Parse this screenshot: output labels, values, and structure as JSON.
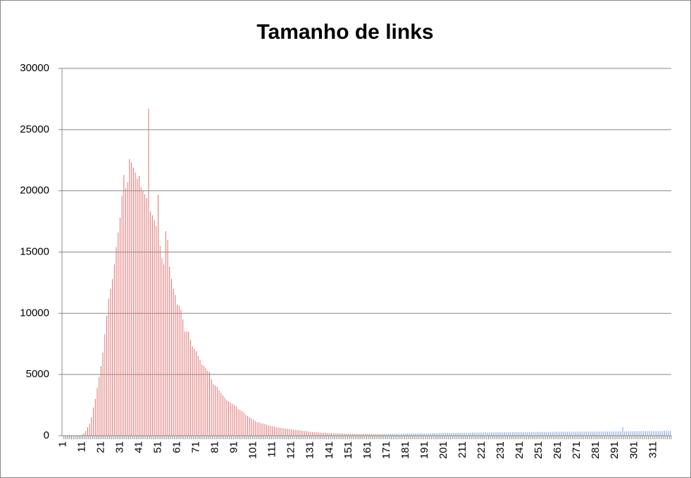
{
  "chart_data": {
    "type": "bar",
    "title": "Tamanho de links",
    "categories": [
      "1",
      null,
      null,
      null,
      null,
      null,
      null,
      null,
      null,
      null,
      "11",
      null,
      null,
      null,
      null,
      null,
      null,
      null,
      null,
      null,
      "21",
      null,
      null,
      null,
      null,
      null,
      null,
      null,
      null,
      null,
      "31",
      null,
      null,
      null,
      null,
      null,
      null,
      null,
      null,
      null,
      "41",
      null,
      null,
      null,
      null,
      null,
      null,
      null,
      null,
      null,
      "51",
      null,
      null,
      null,
      null,
      null,
      null,
      null,
      null,
      null,
      "61",
      null,
      null,
      null,
      null,
      null,
      null,
      null,
      null,
      null,
      "71",
      null,
      null,
      null,
      null,
      null,
      null,
      null,
      null,
      null,
      "81",
      null,
      null,
      null,
      null,
      null,
      null,
      null,
      null,
      null,
      "91",
      null,
      null,
      null,
      null,
      null,
      null,
      null,
      null,
      null,
      "101",
      null,
      null,
      null,
      null,
      null,
      null,
      null,
      null,
      null,
      "111",
      null,
      null,
      null,
      null,
      null,
      null,
      null,
      null,
      null,
      "121",
      null,
      null,
      null,
      null,
      null,
      null,
      null,
      null,
      null,
      "131",
      null,
      null,
      null,
      null,
      null,
      null,
      null,
      null,
      null,
      "141",
      null,
      null,
      null,
      null,
      null,
      null,
      null,
      null,
      null,
      "151",
      null,
      null,
      null,
      null,
      null,
      null,
      null,
      null,
      null,
      "161",
      null,
      null,
      null,
      null,
      null,
      null,
      null,
      null,
      null,
      "171",
      null,
      null,
      null,
      null,
      null,
      null,
      null,
      null,
      null,
      "181",
      null,
      null,
      null,
      null,
      null,
      null,
      null,
      null,
      null,
      "191",
      null,
      null,
      null,
      null,
      null,
      null,
      null,
      null,
      null,
      "201",
      null,
      null,
      null,
      null,
      null,
      null,
      null,
      null,
      null,
      "211",
      null,
      null,
      null,
      null,
      null,
      null,
      null,
      null,
      null,
      "221",
      null,
      null,
      null,
      null,
      null,
      null,
      null,
      null,
      null,
      "231",
      null,
      null,
      null,
      null,
      null,
      null,
      null,
      null,
      null,
      "241",
      null,
      null,
      null,
      null,
      null,
      null,
      null,
      null,
      null,
      "251",
      null,
      null,
      null,
      null,
      null,
      null,
      null,
      null,
      null,
      "261",
      null,
      null,
      null,
      null,
      null,
      null,
      null,
      null,
      null,
      "271",
      null,
      null,
      null,
      null,
      null,
      null,
      null,
      null,
      null,
      "281",
      null,
      null,
      null,
      null,
      null,
      null,
      null,
      null,
      null,
      "291",
      null,
      null,
      null,
      null,
      null,
      null,
      null,
      null,
      null,
      "301",
      null,
      null,
      null,
      null,
      null,
      null,
      null,
      null,
      null,
      "311",
      null,
      null,
      null,
      null,
      null,
      null,
      null,
      null,
      null
    ],
    "series": [
      {
        "color": "#e07070",
        "values": [
          0,
          0,
          0,
          0,
          0,
          0,
          0,
          0,
          0,
          0,
          100,
          200,
          400,
          700,
          1000,
          1500,
          2300,
          3000,
          3900,
          4800,
          5700,
          6800,
          8300,
          9800,
          11200,
          12000,
          12800,
          14000,
          15400,
          16600,
          17800,
          19600,
          21300,
          20200,
          20700,
          22600,
          22300,
          21900,
          21500,
          21000,
          21200,
          20300,
          20000,
          19700,
          19400,
          26700,
          18300,
          18000,
          17600,
          17100,
          19700,
          15500,
          14500,
          14000,
          16700,
          16000,
          13800,
          12800,
          12000,
          11500,
          10700,
          10600,
          10300,
          9500,
          8500,
          8500,
          8500,
          7800,
          7300,
          7100,
          6900,
          6500,
          6200,
          5800,
          5700,
          5500,
          5300,
          5200,
          4600,
          4200,
          4100,
          4000,
          3700,
          3500,
          3300,
          3100,
          2900,
          2800,
          2700,
          2600,
          2500,
          2400,
          2200,
          2100,
          2000,
          1900,
          1700,
          1600,
          1500,
          1400,
          1300,
          1200,
          1100,
          1100,
          1000,
          1000,
          950,
          900,
          850,
          800,
          780,
          750,
          700,
          680,
          650,
          620,
          600,
          580,
          560,
          540,
          520,
          500,
          480,
          460,
          440,
          420,
          400,
          380,
          360,
          340,
          320,
          300,
          290,
          280,
          270,
          260,
          250,
          240,
          230,
          220,
          210,
          205,
          200,
          195,
          190,
          185,
          180,
          175,
          170,
          165,
          160,
          158,
          155,
          152,
          150,
          148,
          146,
          144,
          142,
          140,
          138,
          136,
          134,
          132,
          130,
          130,
          130,
          130,
          130,
          130,
          null,
          null,
          null,
          null,
          null,
          null,
          null,
          null,
          null,
          null,
          null,
          null,
          null,
          null,
          null,
          null,
          null,
          null,
          null,
          null,
          null,
          null,
          null,
          null,
          null,
          null,
          null,
          null,
          null,
          null,
          null,
          null,
          null,
          null,
          null,
          null,
          null,
          null,
          null,
          null,
          null,
          null,
          null,
          null,
          null,
          null,
          null,
          null,
          null,
          null,
          null,
          null,
          null,
          null,
          null,
          null,
          null,
          null,
          null,
          null,
          null,
          null,
          null,
          null,
          null,
          null,
          null,
          null,
          null,
          null,
          null,
          null,
          null,
          null,
          null,
          null,
          null,
          null,
          null,
          null,
          null,
          null,
          null,
          null,
          null,
          null,
          null,
          null,
          null,
          null,
          null,
          null,
          null,
          null,
          null,
          null,
          null,
          null,
          null,
          null,
          null,
          null,
          null,
          null,
          null,
          null,
          null,
          null,
          null,
          null,
          null,
          null,
          null,
          null,
          null,
          null,
          null,
          null,
          null,
          null,
          null,
          null,
          null,
          null,
          null,
          null,
          null,
          null,
          null,
          null,
          null,
          null,
          null,
          null,
          null,
          null,
          null,
          null,
          null,
          null,
          null,
          null,
          null,
          null,
          null,
          null,
          null,
          null,
          null,
          null
        ]
      },
      {
        "color": "#7aa6d8",
        "values": [
          null,
          null,
          null,
          null,
          null,
          null,
          null,
          null,
          null,
          null,
          null,
          null,
          null,
          null,
          null,
          null,
          null,
          null,
          null,
          null,
          null,
          null,
          null,
          null,
          null,
          null,
          null,
          null,
          null,
          null,
          null,
          null,
          null,
          null,
          null,
          null,
          null,
          null,
          null,
          null,
          null,
          null,
          null,
          null,
          null,
          null,
          null,
          null,
          null,
          null,
          null,
          null,
          null,
          null,
          null,
          null,
          null,
          null,
          null,
          null,
          null,
          null,
          null,
          null,
          null,
          null,
          null,
          null,
          null,
          null,
          null,
          null,
          null,
          null,
          null,
          null,
          null,
          null,
          null,
          null,
          null,
          null,
          null,
          null,
          null,
          null,
          null,
          null,
          null,
          null,
          null,
          null,
          null,
          null,
          null,
          null,
          null,
          null,
          null,
          null,
          null,
          null,
          null,
          null,
          null,
          null,
          null,
          null,
          null,
          null,
          null,
          null,
          null,
          null,
          null,
          null,
          null,
          null,
          null,
          null,
          null,
          null,
          null,
          null,
          null,
          null,
          null,
          null,
          null,
          null,
          null,
          null,
          null,
          null,
          null,
          null,
          null,
          null,
          null,
          null,
          null,
          null,
          null,
          null,
          null,
          null,
          null,
          null,
          null,
          null,
          null,
          null,
          null,
          null,
          null,
          null,
          null,
          null,
          null,
          null,
          null,
          null,
          null,
          null,
          null,
          null,
          null,
          null,
          null,
          null,
          140,
          145,
          150,
          150,
          155,
          155,
          160,
          160,
          165,
          165,
          170,
          170,
          175,
          175,
          180,
          180,
          185,
          185,
          190,
          190,
          195,
          195,
          200,
          200,
          205,
          205,
          210,
          210,
          215,
          215,
          220,
          220,
          225,
          225,
          230,
          230,
          235,
          235,
          240,
          240,
          245,
          245,
          250,
          250,
          255,
          255,
          260,
          260,
          265,
          265,
          270,
          270,
          272,
          272,
          275,
          275,
          278,
          278,
          280,
          280,
          282,
          282,
          285,
          285,
          288,
          288,
          290,
          290,
          292,
          292,
          295,
          295,
          298,
          298,
          300,
          300,
          302,
          302,
          305,
          305,
          308,
          308,
          310,
          310,
          312,
          312,
          315,
          315,
          318,
          318,
          320,
          320,
          322,
          322,
          325,
          325,
          328,
          328,
          330,
          330,
          332,
          332,
          335,
          335,
          338,
          338,
          340,
          340,
          342,
          342,
          345,
          345,
          348,
          348,
          350,
          350,
          352,
          352,
          355,
          355,
          358,
          358,
          360,
          360,
          700,
          360,
          362,
          362,
          365,
          365,
          368,
          368,
          370,
          370,
          372,
          372,
          375,
          375,
          378,
          378,
          380,
          380,
          382,
          382,
          385,
          385,
          388,
          388,
          390,
          390
        ]
      }
    ],
    "ylim": [
      0,
      30000
    ],
    "yticks": [
      0,
      5000,
      10000,
      15000,
      20000,
      25000,
      30000
    ],
    "grid": true
  }
}
